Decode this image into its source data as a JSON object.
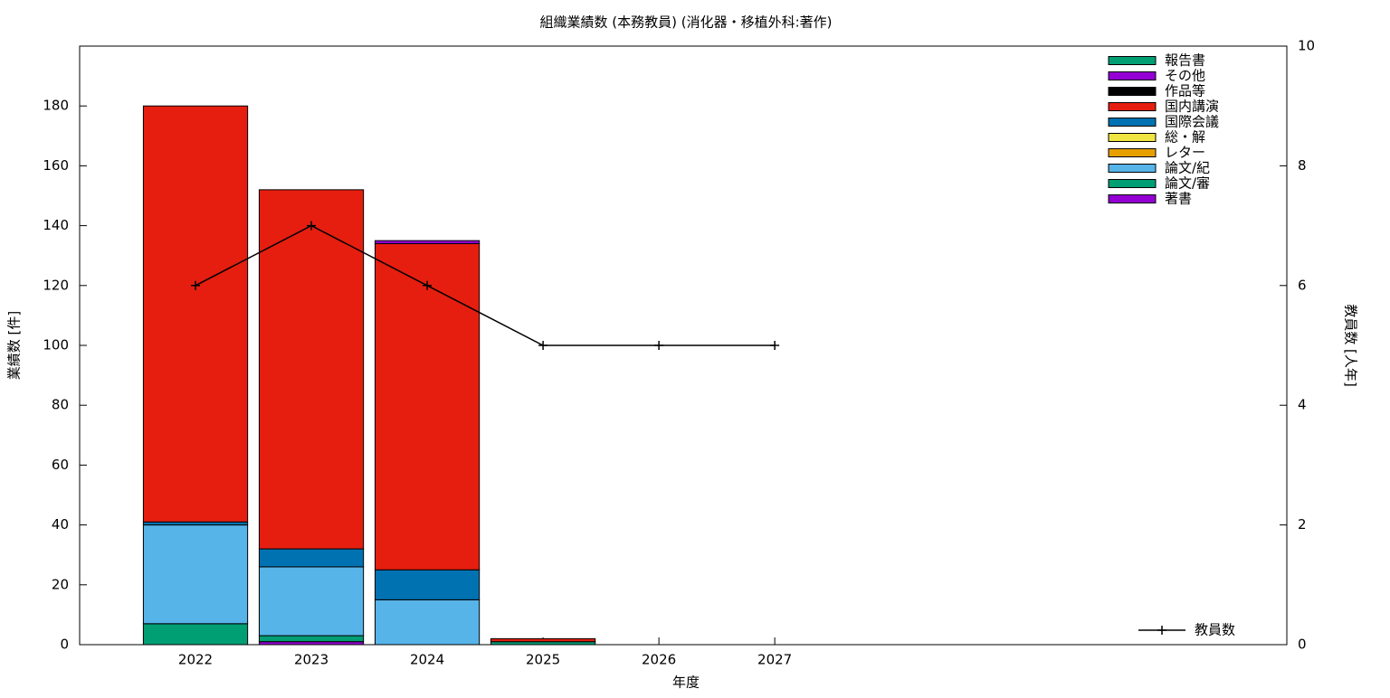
{
  "chart_data": {
    "type": "bar",
    "stacked": true,
    "title": "組織業績数 (本務教員) (消化器・移植外科:著作)",
    "x_label": "年度",
    "y_label": "業績数 [件]",
    "y2_label": "教員数 [人年]",
    "x": [
      2022,
      2023,
      2024,
      2025,
      2026,
      2027
    ],
    "xlim": [
      2021,
      2031.42
    ],
    "xticks": [
      2022,
      2023,
      2024,
      2025,
      2026,
      2027
    ],
    "ylim": [
      0,
      200
    ],
    "yticks": [
      0,
      20,
      40,
      60,
      80,
      100,
      120,
      140,
      160,
      180
    ],
    "y2lim": [
      0,
      10
    ],
    "y2ticks": [
      0,
      2,
      4,
      6,
      8,
      10
    ],
    "series": [
      {
        "name": "著書",
        "color": "#9400d3",
        "values": [
          0,
          1,
          0,
          0,
          0,
          0
        ]
      },
      {
        "name": "論文/審",
        "color": "#009e73",
        "values": [
          7,
          2,
          0,
          1,
          0,
          0
        ]
      },
      {
        "name": "論文/紀",
        "color": "#56b4e9",
        "values": [
          33,
          23,
          15,
          0,
          0,
          0
        ]
      },
      {
        "name": "レター",
        "color": "#e69f00",
        "values": [
          0,
          0,
          0,
          0,
          0,
          0
        ]
      },
      {
        "name": "総・解",
        "color": "#f0e442",
        "values": [
          0,
          0,
          0,
          0,
          0,
          0
        ]
      },
      {
        "name": "国際会議",
        "color": "#0072b2",
        "values": [
          1,
          6,
          10,
          0,
          0,
          0
        ]
      },
      {
        "name": "国内講演",
        "color": "#e51e10",
        "values": [
          139,
          120,
          109,
          1,
          0,
          0
        ]
      },
      {
        "name": "作品等",
        "color": "#000000",
        "values": [
          0,
          0,
          0,
          0,
          0,
          0
        ]
      },
      {
        "name": "その他",
        "color": "#9400d3",
        "values": [
          0,
          0,
          1,
          0,
          0,
          0
        ]
      },
      {
        "name": "報告書",
        "color": "#009e73",
        "values": [
          0,
          0,
          0,
          0,
          0,
          0
        ]
      },
      {
        "name": "教員数",
        "type": "line",
        "axis": "y2",
        "color": "#000000",
        "values": [
          6,
          7,
          6,
          5,
          5,
          5
        ]
      }
    ]
  }
}
